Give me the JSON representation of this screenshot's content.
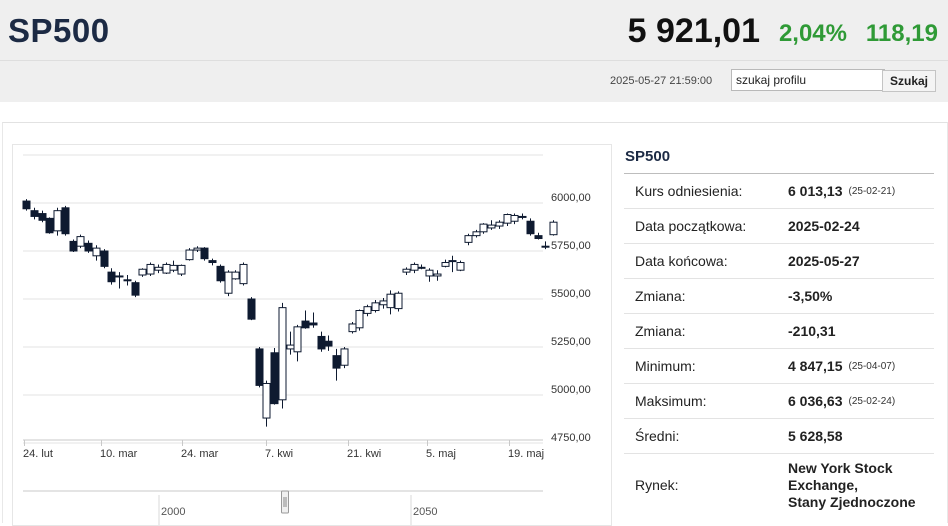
{
  "header": {
    "ticker": "SP500",
    "price": "5 921,01",
    "change_pct": "2,04%",
    "change_abs": "118,19",
    "timestamp": "2025-05-27 21:59:00"
  },
  "search": {
    "value": "szukaj profilu",
    "button_label": "Szukaj"
  },
  "colors": {
    "up": "#2f9a36",
    "title": "#1c2a44",
    "candle_down": "#0e1a30",
    "candle_up": "#ffffff"
  },
  "chart_data": {
    "type": "candlestick",
    "y_ticks": [
      "6000,00",
      "5750,00",
      "5500,00",
      "5250,00",
      "5000,00",
      "4750,00"
    ],
    "ylim": [
      4750,
      6080
    ],
    "x_ticks": [
      "24. lut",
      "10. mar",
      "24. mar",
      "7. kwi",
      "21. kwi",
      "5. maj",
      "19. maj"
    ],
    "navigator_ticks": [
      "2000",
      "2050"
    ],
    "candles": [
      {
        "o": 6010,
        "h": 6020,
        "l": 5960,
        "c": 5970
      },
      {
        "o": 5960,
        "h": 5975,
        "l": 5915,
        "c": 5930
      },
      {
        "o": 5945,
        "h": 5960,
        "l": 5900,
        "c": 5910
      },
      {
        "o": 5920,
        "h": 5925,
        "l": 5840,
        "c": 5845
      },
      {
        "o": 5855,
        "h": 5975,
        "l": 5830,
        "c": 5960
      },
      {
        "o": 5975,
        "h": 5985,
        "l": 5830,
        "c": 5840
      },
      {
        "o": 5800,
        "h": 5810,
        "l": 5745,
        "c": 5750
      },
      {
        "o": 5775,
        "h": 5835,
        "l": 5765,
        "c": 5825
      },
      {
        "o": 5790,
        "h": 5805,
        "l": 5740,
        "c": 5750
      },
      {
        "o": 5725,
        "h": 5780,
        "l": 5700,
        "c": 5765
      },
      {
        "o": 5750,
        "h": 5760,
        "l": 5660,
        "c": 5670
      },
      {
        "o": 5640,
        "h": 5660,
        "l": 5575,
        "c": 5590
      },
      {
        "o": 5620,
        "h": 5640,
        "l": 5555,
        "c": 5615
      },
      {
        "o": 5600,
        "h": 5625,
        "l": 5570,
        "c": 5600
      },
      {
        "o": 5585,
        "h": 5595,
        "l": 5510,
        "c": 5520
      },
      {
        "o": 5625,
        "h": 5660,
        "l": 5615,
        "c": 5655
      },
      {
        "o": 5630,
        "h": 5690,
        "l": 5620,
        "c": 5680
      },
      {
        "o": 5650,
        "h": 5680,
        "l": 5635,
        "c": 5665
      },
      {
        "o": 5635,
        "h": 5690,
        "l": 5630,
        "c": 5680
      },
      {
        "o": 5650,
        "h": 5700,
        "l": 5640,
        "c": 5675
      },
      {
        "o": 5630,
        "h": 5680,
        "l": 5620,
        "c": 5675
      },
      {
        "o": 5705,
        "h": 5765,
        "l": 5700,
        "c": 5755
      },
      {
        "o": 5755,
        "h": 5775,
        "l": 5745,
        "c": 5765
      },
      {
        "o": 5765,
        "h": 5770,
        "l": 5700,
        "c": 5710
      },
      {
        "o": 5700,
        "h": 5710,
        "l": 5675,
        "c": 5690
      },
      {
        "o": 5670,
        "h": 5680,
        "l": 5585,
        "c": 5595
      },
      {
        "o": 5530,
        "h": 5650,
        "l": 5515,
        "c": 5640
      },
      {
        "o": 5605,
        "h": 5650,
        "l": 5600,
        "c": 5640
      },
      {
        "o": 5580,
        "h": 5690,
        "l": 5570,
        "c": 5680
      },
      {
        "o": 5500,
        "h": 5510,
        "l": 5390,
        "c": 5395
      },
      {
        "o": 5240,
        "h": 5250,
        "l": 5040,
        "c": 5050
      },
      {
        "o": 4880,
        "h": 5075,
        "l": 4835,
        "c": 5060
      },
      {
        "o": 5220,
        "h": 5245,
        "l": 4950,
        "c": 4955
      },
      {
        "o": 4975,
        "h": 5480,
        "l": 4930,
        "c": 5455
      },
      {
        "o": 5240,
        "h": 5330,
        "l": 5210,
        "c": 5260
      },
      {
        "o": 5225,
        "h": 5365,
        "l": 5175,
        "c": 5355
      },
      {
        "o": 5385,
        "h": 5440,
        "l": 5345,
        "c": 5350
      },
      {
        "o": 5375,
        "h": 5430,
        "l": 5350,
        "c": 5365
      },
      {
        "o": 5305,
        "h": 5330,
        "l": 5225,
        "c": 5240
      },
      {
        "o": 5280,
        "h": 5310,
        "l": 5230,
        "c": 5255
      },
      {
        "o": 5205,
        "h": 5240,
        "l": 5075,
        "c": 5140
      },
      {
        "o": 5155,
        "h": 5250,
        "l": 5140,
        "c": 5240
      },
      {
        "o": 5330,
        "h": 5380,
        "l": 5320,
        "c": 5370
      },
      {
        "o": 5350,
        "h": 5445,
        "l": 5335,
        "c": 5440
      },
      {
        "o": 5425,
        "h": 5470,
        "l": 5410,
        "c": 5460
      },
      {
        "o": 5440,
        "h": 5495,
        "l": 5430,
        "c": 5480
      },
      {
        "o": 5470,
        "h": 5505,
        "l": 5450,
        "c": 5490
      },
      {
        "o": 5455,
        "h": 5545,
        "l": 5420,
        "c": 5525
      },
      {
        "o": 5450,
        "h": 5540,
        "l": 5435,
        "c": 5530
      },
      {
        "o": 5640,
        "h": 5665,
        "l": 5625,
        "c": 5655
      },
      {
        "o": 5650,
        "h": 5690,
        "l": 5635,
        "c": 5680
      },
      {
        "o": 5665,
        "h": 5680,
        "l": 5655,
        "c": 5665
      },
      {
        "o": 5620,
        "h": 5660,
        "l": 5590,
        "c": 5650
      },
      {
        "o": 5620,
        "h": 5650,
        "l": 5595,
        "c": 5630
      },
      {
        "o": 5670,
        "h": 5705,
        "l": 5665,
        "c": 5690
      },
      {
        "o": 5695,
        "h": 5725,
        "l": 5640,
        "c": 5700
      },
      {
        "o": 5650,
        "h": 5700,
        "l": 5645,
        "c": 5690
      },
      {
        "o": 5795,
        "h": 5840,
        "l": 5780,
        "c": 5830
      },
      {
        "o": 5830,
        "h": 5860,
        "l": 5820,
        "c": 5850
      },
      {
        "o": 5850,
        "h": 5895,
        "l": 5840,
        "c": 5890
      },
      {
        "o": 5870,
        "h": 5910,
        "l": 5860,
        "c": 5885
      },
      {
        "o": 5880,
        "h": 5910,
        "l": 5865,
        "c": 5900
      },
      {
        "o": 5895,
        "h": 5945,
        "l": 5880,
        "c": 5940
      },
      {
        "o": 5905,
        "h": 5945,
        "l": 5890,
        "c": 5935
      },
      {
        "o": 5930,
        "h": 5945,
        "l": 5915,
        "c": 5925
      },
      {
        "o": 5905,
        "h": 5920,
        "l": 5830,
        "c": 5840
      },
      {
        "o": 5830,
        "h": 5845,
        "l": 5810,
        "c": 5815
      },
      {
        "o": 5775,
        "h": 5800,
        "l": 5760,
        "c": 5770
      },
      {
        "o": 5835,
        "h": 5910,
        "l": 5830,
        "c": 5900
      }
    ]
  },
  "info": {
    "title": "SP500",
    "rows": [
      {
        "label": "Kurs odniesienia:",
        "value": "6 013,13",
        "date": "(25-02-21)"
      },
      {
        "label": "Data początkowa:",
        "value": "2025-02-24",
        "date": ""
      },
      {
        "label": "Data końcowa:",
        "value": "2025-05-27",
        "date": ""
      },
      {
        "label": "Zmiana:",
        "value": "-3,50%",
        "date": ""
      },
      {
        "label": "Zmiana:",
        "value": "-210,31",
        "date": ""
      },
      {
        "label": "Minimum:",
        "value": "4 847,15",
        "date": "(25-04-07)"
      },
      {
        "label": "Maksimum:",
        "value": "6 036,63",
        "date": "(25-02-24)"
      },
      {
        "label": "Średni:",
        "value": "5 628,58",
        "date": ""
      }
    ],
    "market": {
      "label": "Rynek:",
      "lines": [
        "New York Stock",
        "Exchange,",
        "Stany Zjednoczone"
      ]
    }
  }
}
